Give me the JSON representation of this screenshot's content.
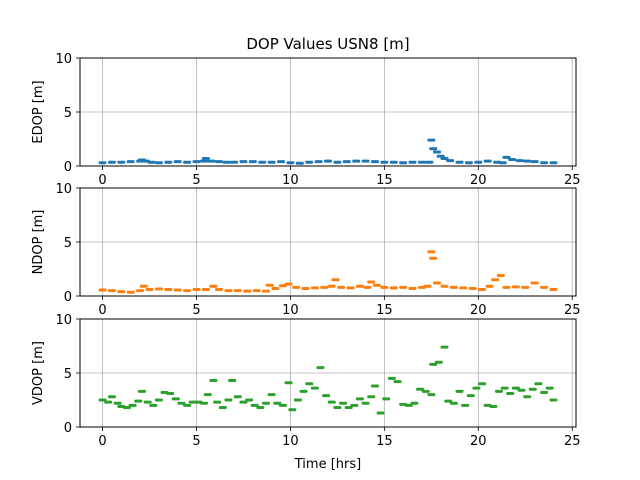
{
  "title": "DOP Values USN8 [m]",
  "colors": {
    "edop": "#1f77b4",
    "ndop": "#ff7f0e",
    "vdop": "#2ca02c",
    "grid": "#b0b0b0"
  },
  "chart_data": [
    {
      "type": "scatter",
      "ylabel": "EDOP [m]",
      "xlabel": "",
      "xlim": [
        -1.2,
        25.2
      ],
      "ylim": [
        0,
        10
      ],
      "xticks": [
        "0",
        "5",
        "10",
        "15",
        "20",
        "25"
      ],
      "yticks": [
        "0",
        "5",
        "10"
      ],
      "grid": true,
      "series": [
        {
          "color": "#1f77b4",
          "points": [
            [
              0.0,
              0.3
            ],
            [
              0.5,
              0.35
            ],
            [
              1.0,
              0.35
            ],
            [
              1.5,
              0.4
            ],
            [
              2.0,
              0.45
            ],
            [
              2.1,
              0.55
            ],
            [
              2.3,
              0.45
            ],
            [
              2.6,
              0.35
            ],
            [
              3.0,
              0.3
            ],
            [
              3.5,
              0.35
            ],
            [
              4.0,
              0.4
            ],
            [
              4.5,
              0.35
            ],
            [
              5.0,
              0.4
            ],
            [
              5.4,
              0.45
            ],
            [
              5.5,
              0.7
            ],
            [
              5.8,
              0.45
            ],
            [
              6.2,
              0.4
            ],
            [
              6.6,
              0.35
            ],
            [
              7.0,
              0.35
            ],
            [
              7.5,
              0.4
            ],
            [
              8.0,
              0.4
            ],
            [
              8.5,
              0.35
            ],
            [
              9.0,
              0.35
            ],
            [
              9.5,
              0.4
            ],
            [
              10.0,
              0.3
            ],
            [
              10.5,
              0.25
            ],
            [
              11.0,
              0.35
            ],
            [
              11.5,
              0.4
            ],
            [
              12.0,
              0.45
            ],
            [
              12.5,
              0.35
            ],
            [
              13.0,
              0.4
            ],
            [
              13.5,
              0.45
            ],
            [
              14.0,
              0.45
            ],
            [
              14.5,
              0.4
            ],
            [
              15.0,
              0.35
            ],
            [
              15.5,
              0.35
            ],
            [
              16.0,
              0.3
            ],
            [
              16.5,
              0.35
            ],
            [
              17.0,
              0.35
            ],
            [
              17.4,
              0.35
            ],
            [
              17.5,
              2.4
            ],
            [
              17.6,
              1.6
            ],
            [
              17.8,
              1.3
            ],
            [
              18.0,
              0.9
            ],
            [
              18.2,
              0.7
            ],
            [
              18.5,
              0.5
            ],
            [
              19.0,
              0.35
            ],
            [
              19.5,
              0.3
            ],
            [
              20.0,
              0.35
            ],
            [
              20.5,
              0.45
            ],
            [
              21.0,
              0.35
            ],
            [
              21.3,
              0.3
            ],
            [
              21.5,
              0.8
            ],
            [
              21.8,
              0.6
            ],
            [
              22.2,
              0.5
            ],
            [
              22.6,
              0.45
            ],
            [
              23.0,
              0.4
            ],
            [
              23.5,
              0.3
            ],
            [
              24.0,
              0.3
            ]
          ]
        }
      ]
    },
    {
      "type": "scatter",
      "ylabel": "NDOP [m]",
      "xlabel": "",
      "xlim": [
        -1.2,
        25.2
      ],
      "ylim": [
        0,
        10
      ],
      "xticks": [
        "0",
        "5",
        "10",
        "15",
        "20",
        "25"
      ],
      "yticks": [
        "0",
        "5",
        "10"
      ],
      "grid": true,
      "series": [
        {
          "color": "#ff7f0e",
          "points": [
            [
              0.0,
              0.55
            ],
            [
              0.5,
              0.5
            ],
            [
              1.0,
              0.4
            ],
            [
              1.5,
              0.35
            ],
            [
              2.0,
              0.5
            ],
            [
              2.2,
              0.9
            ],
            [
              2.5,
              0.6
            ],
            [
              3.0,
              0.65
            ],
            [
              3.5,
              0.6
            ],
            [
              4.0,
              0.55
            ],
            [
              4.5,
              0.5
            ],
            [
              5.0,
              0.6
            ],
            [
              5.5,
              0.6
            ],
            [
              5.9,
              0.9
            ],
            [
              6.2,
              0.6
            ],
            [
              6.7,
              0.5
            ],
            [
              7.2,
              0.5
            ],
            [
              7.7,
              0.45
            ],
            [
              8.2,
              0.5
            ],
            [
              8.7,
              0.45
            ],
            [
              8.9,
              1.0
            ],
            [
              9.2,
              0.7
            ],
            [
              9.6,
              0.95
            ],
            [
              9.9,
              1.1
            ],
            [
              10.3,
              0.8
            ],
            [
              10.8,
              0.7
            ],
            [
              11.3,
              0.75
            ],
            [
              11.8,
              0.8
            ],
            [
              12.2,
              0.9
            ],
            [
              12.4,
              1.5
            ],
            [
              12.7,
              0.8
            ],
            [
              13.2,
              0.75
            ],
            [
              13.7,
              0.9
            ],
            [
              14.1,
              0.8
            ],
            [
              14.3,
              1.3
            ],
            [
              14.6,
              1.0
            ],
            [
              15.0,
              0.8
            ],
            [
              15.5,
              0.75
            ],
            [
              16.0,
              0.8
            ],
            [
              16.5,
              0.7
            ],
            [
              17.0,
              0.8
            ],
            [
              17.3,
              0.9
            ],
            [
              17.5,
              4.1
            ],
            [
              17.6,
              3.5
            ],
            [
              17.8,
              1.2
            ],
            [
              18.2,
              0.9
            ],
            [
              18.7,
              0.8
            ],
            [
              19.2,
              0.75
            ],
            [
              19.7,
              0.7
            ],
            [
              20.2,
              0.6
            ],
            [
              20.6,
              0.9
            ],
            [
              20.9,
              1.5
            ],
            [
              21.2,
              1.9
            ],
            [
              21.5,
              0.8
            ],
            [
              22.0,
              0.85
            ],
            [
              22.5,
              0.8
            ],
            [
              23.0,
              1.2
            ],
            [
              23.5,
              0.8
            ],
            [
              24.0,
              0.6
            ]
          ]
        }
      ]
    },
    {
      "type": "scatter",
      "ylabel": "VDOP [m]",
      "xlabel": "Time [hrs]",
      "xlim": [
        -1.2,
        25.2
      ],
      "ylim": [
        0,
        10
      ],
      "xticks": [
        "0",
        "5",
        "10",
        "15",
        "20",
        "25"
      ],
      "yticks": [
        "0",
        "5",
        "10"
      ],
      "grid": true,
      "series": [
        {
          "color": "#2ca02c",
          "points": [
            [
              0.0,
              2.5
            ],
            [
              0.3,
              2.3
            ],
            [
              0.5,
              2.8
            ],
            [
              0.8,
              2.2
            ],
            [
              1.0,
              1.9
            ],
            [
              1.3,
              1.8
            ],
            [
              1.6,
              2.0
            ],
            [
              1.9,
              2.4
            ],
            [
              2.1,
              3.3
            ],
            [
              2.4,
              2.3
            ],
            [
              2.7,
              2.0
            ],
            [
              3.0,
              2.5
            ],
            [
              3.3,
              3.2
            ],
            [
              3.6,
              3.1
            ],
            [
              3.9,
              2.6
            ],
            [
              4.2,
              2.2
            ],
            [
              4.5,
              2.0
            ],
            [
              4.8,
              2.3
            ],
            [
              5.1,
              2.3
            ],
            [
              5.4,
              2.2
            ],
            [
              5.6,
              3.0
            ],
            [
              5.9,
              4.3
            ],
            [
              6.1,
              2.3
            ],
            [
              6.4,
              1.8
            ],
            [
              6.7,
              2.5
            ],
            [
              6.9,
              4.3
            ],
            [
              7.2,
              2.8
            ],
            [
              7.5,
              2.3
            ],
            [
              7.8,
              2.5
            ],
            [
              8.1,
              2.0
            ],
            [
              8.4,
              1.8
            ],
            [
              8.7,
              2.2
            ],
            [
              9.0,
              3.0
            ],
            [
              9.3,
              2.2
            ],
            [
              9.6,
              2.0
            ],
            [
              9.9,
              4.1
            ],
            [
              10.1,
              1.6
            ],
            [
              10.4,
              2.5
            ],
            [
              10.7,
              3.3
            ],
            [
              11.0,
              4.0
            ],
            [
              11.3,
              3.6
            ],
            [
              11.6,
              5.5
            ],
            [
              11.9,
              2.9
            ],
            [
              12.2,
              2.3
            ],
            [
              12.5,
              1.8
            ],
            [
              12.8,
              2.2
            ],
            [
              13.1,
              1.8
            ],
            [
              13.4,
              2.0
            ],
            [
              13.7,
              2.6
            ],
            [
              14.0,
              2.2
            ],
            [
              14.3,
              2.8
            ],
            [
              14.5,
              3.8
            ],
            [
              14.8,
              1.3
            ],
            [
              15.1,
              2.6
            ],
            [
              15.4,
              4.5
            ],
            [
              15.7,
              4.2
            ],
            [
              16.0,
              2.1
            ],
            [
              16.3,
              2.0
            ],
            [
              16.6,
              2.2
            ],
            [
              16.9,
              3.5
            ],
            [
              17.2,
              3.3
            ],
            [
              17.5,
              3.0
            ],
            [
              17.6,
              5.8
            ],
            [
              17.9,
              6.0
            ],
            [
              18.2,
              7.4
            ],
            [
              18.4,
              2.4
            ],
            [
              18.7,
              2.2
            ],
            [
              19.0,
              3.3
            ],
            [
              19.3,
              2.0
            ],
            [
              19.6,
              2.9
            ],
            [
              19.9,
              3.6
            ],
            [
              20.2,
              4.0
            ],
            [
              20.5,
              2.0
            ],
            [
              20.8,
              1.9
            ],
            [
              21.1,
              3.3
            ],
            [
              21.4,
              3.6
            ],
            [
              21.7,
              3.1
            ],
            [
              22.0,
              3.6
            ],
            [
              22.3,
              3.4
            ],
            [
              22.6,
              2.8
            ],
            [
              22.9,
              3.5
            ],
            [
              23.2,
              4.0
            ],
            [
              23.5,
              3.2
            ],
            [
              23.8,
              3.6
            ],
            [
              24.0,
              2.5
            ]
          ]
        }
      ]
    }
  ]
}
